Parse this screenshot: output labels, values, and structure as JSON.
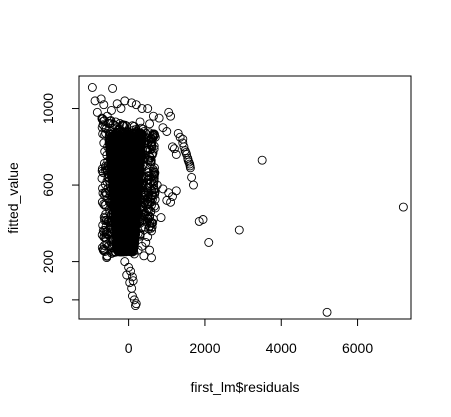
{
  "chart_data": {
    "type": "scatter",
    "title": "",
    "xlabel": "first_lm$residuals",
    "ylabel": "fitted_value",
    "xlim": [
      -1300,
      7400
    ],
    "ylim": [
      -100,
      1170
    ],
    "x_ticks": [
      0,
      2000,
      4000,
      6000
    ],
    "x_tick_labels": [
      "0",
      "2000",
      "4000",
      "6000"
    ],
    "y_ticks": [
      0,
      200,
      600,
      1000
    ],
    "y_tick_labels": [
      "0",
      "200",
      "600",
      "1000"
    ],
    "grid": false,
    "legend": "none",
    "marker": "open-circle",
    "marker_color": "#000000",
    "points": [
      [
        -950,
        1110
      ],
      [
        -420,
        1105
      ],
      [
        -720,
        1050
      ],
      [
        -880,
        1040
      ],
      [
        -650,
        1020
      ],
      [
        -300,
        1025
      ],
      [
        -100,
        1040
      ],
      [
        80,
        1030
      ],
      [
        200,
        1020
      ],
      [
        350,
        1000
      ],
      [
        500,
        1000
      ],
      [
        -200,
        1000
      ],
      [
        -450,
        990
      ],
      [
        -820,
        980
      ],
      [
        -560,
        960
      ],
      [
        -700,
        950
      ],
      [
        650,
        960
      ],
      [
        800,
        950
      ],
      [
        1050,
        980
      ],
      [
        1100,
        960
      ],
      [
        -500,
        920
      ],
      [
        -300,
        900
      ],
      [
        100,
        910
      ],
      [
        300,
        930
      ],
      [
        550,
        920
      ],
      [
        900,
        900
      ],
      [
        1000,
        880
      ],
      [
        1300,
        870
      ],
      [
        1350,
        850
      ],
      [
        1420,
        840
      ],
      [
        -600,
        870
      ],
      [
        -400,
        860
      ],
      [
        200,
        860
      ],
      [
        450,
        870
      ],
      [
        700,
        850
      ],
      [
        1150,
        800
      ],
      [
        1200,
        790
      ],
      [
        1250,
        760
      ],
      [
        1420,
        820
      ],
      [
        1450,
        800
      ],
      [
        1480,
        780
      ],
      [
        1500,
        770
      ],
      [
        1520,
        760
      ],
      [
        1550,
        740
      ],
      [
        1560,
        730
      ],
      [
        1580,
        720
      ],
      [
        1600,
        710
      ],
      [
        1610,
        700
      ],
      [
        1620,
        690
      ],
      [
        -650,
        820
      ],
      [
        -550,
        800
      ],
      [
        -450,
        780
      ],
      [
        -350,
        760
      ],
      [
        -250,
        740
      ],
      [
        -150,
        720
      ],
      [
        0,
        700
      ],
      [
        150,
        680
      ],
      [
        300,
        660
      ],
      [
        450,
        640
      ],
      [
        600,
        620
      ],
      [
        750,
        600
      ],
      [
        900,
        580
      ],
      [
        1050,
        560
      ],
      [
        1150,
        540
      ],
      [
        1000,
        520
      ],
      [
        1100,
        510
      ],
      [
        1250,
        570
      ],
      [
        1650,
        640
      ],
      [
        1700,
        600
      ],
      [
        -600,
        700
      ],
      [
        -500,
        650
      ],
      [
        -400,
        600
      ],
      [
        -300,
        550
      ],
      [
        -200,
        500
      ],
      [
        -100,
        450
      ],
      [
        0,
        400
      ],
      [
        100,
        380
      ],
      [
        200,
        360
      ],
      [
        300,
        400
      ],
      [
        400,
        420
      ],
      [
        500,
        440
      ],
      [
        700,
        480
      ],
      [
        850,
        430
      ],
      [
        600,
        360
      ],
      [
        -250,
        320
      ],
      [
        -150,
        300
      ],
      [
        -50,
        280
      ],
      [
        50,
        260
      ],
      [
        150,
        240
      ],
      [
        250,
        260
      ],
      [
        350,
        280
      ],
      [
        450,
        300
      ],
      [
        500,
        330
      ],
      [
        550,
        260
      ],
      [
        -100,
        200
      ],
      [
        0,
        170
      ],
      [
        50,
        150
      ],
      [
        100,
        120
      ],
      [
        120,
        100
      ],
      [
        30,
        90
      ],
      [
        -50,
        130
      ],
      [
        80,
        60
      ],
      [
        100,
        20
      ],
      [
        150,
        0
      ],
      [
        200,
        -20
      ],
      [
        180,
        -30
      ],
      [
        600,
        220
      ],
      [
        400,
        230
      ],
      [
        1850,
        410
      ],
      [
        1950,
        420
      ],
      [
        2100,
        300
      ],
      [
        2900,
        365
      ],
      [
        3500,
        730
      ],
      [
        5200,
        -65
      ],
      [
        7200,
        485
      ]
    ],
    "dense_region": {
      "x_range": [
        -700,
        700
      ],
      "y_top_at_left": 950,
      "y_bottom": 200,
      "y_top_at_right": 880,
      "y_bottom_at_right": 380,
      "core_x_range": [
        -400,
        300
      ],
      "core_y_range": [
        250,
        870
      ]
    }
  }
}
